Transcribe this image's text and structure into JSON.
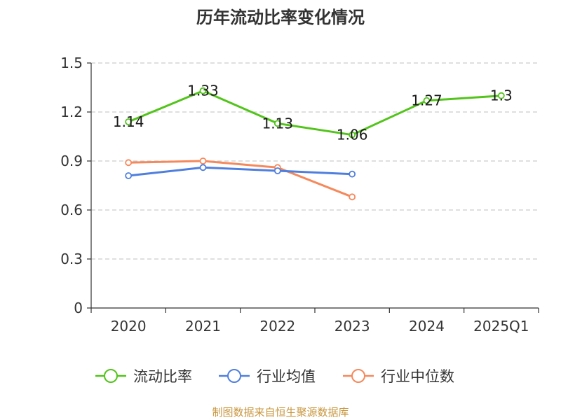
{
  "title": "历年流动比率变化情况",
  "source": "制图数据来自恒生聚源数据库",
  "chart_data": {
    "type": "line",
    "title": "历年流动比率变化情况",
    "categories": [
      "2020",
      "2021",
      "2022",
      "2023",
      "2024",
      "2025Q1"
    ],
    "ylim": [
      0,
      1.5
    ],
    "yticks": [
      0,
      0.3,
      0.6,
      0.9,
      1.2,
      1.5
    ],
    "ytick_labels": [
      "0",
      "0.3",
      "0.6",
      "0.9",
      "1.2",
      "1.5"
    ],
    "grid": true,
    "legend_position": "bottom",
    "series": [
      {
        "name": "流动比率",
        "color": "#52c41a",
        "values": [
          1.14,
          1.33,
          1.13,
          1.06,
          1.27,
          1.3
        ],
        "labels": [
          "1.14",
          "1.33",
          "1.13",
          "1.06",
          "1.27",
          "1.3"
        ]
      },
      {
        "name": "行业均值",
        "color": "#4f7fde",
        "values": [
          0.81,
          0.86,
          0.84,
          0.82,
          null,
          null
        ]
      },
      {
        "name": "行业中位数",
        "color": "#f5895c",
        "values": [
          0.89,
          0.9,
          0.86,
          0.68,
          null,
          null
        ]
      }
    ]
  }
}
